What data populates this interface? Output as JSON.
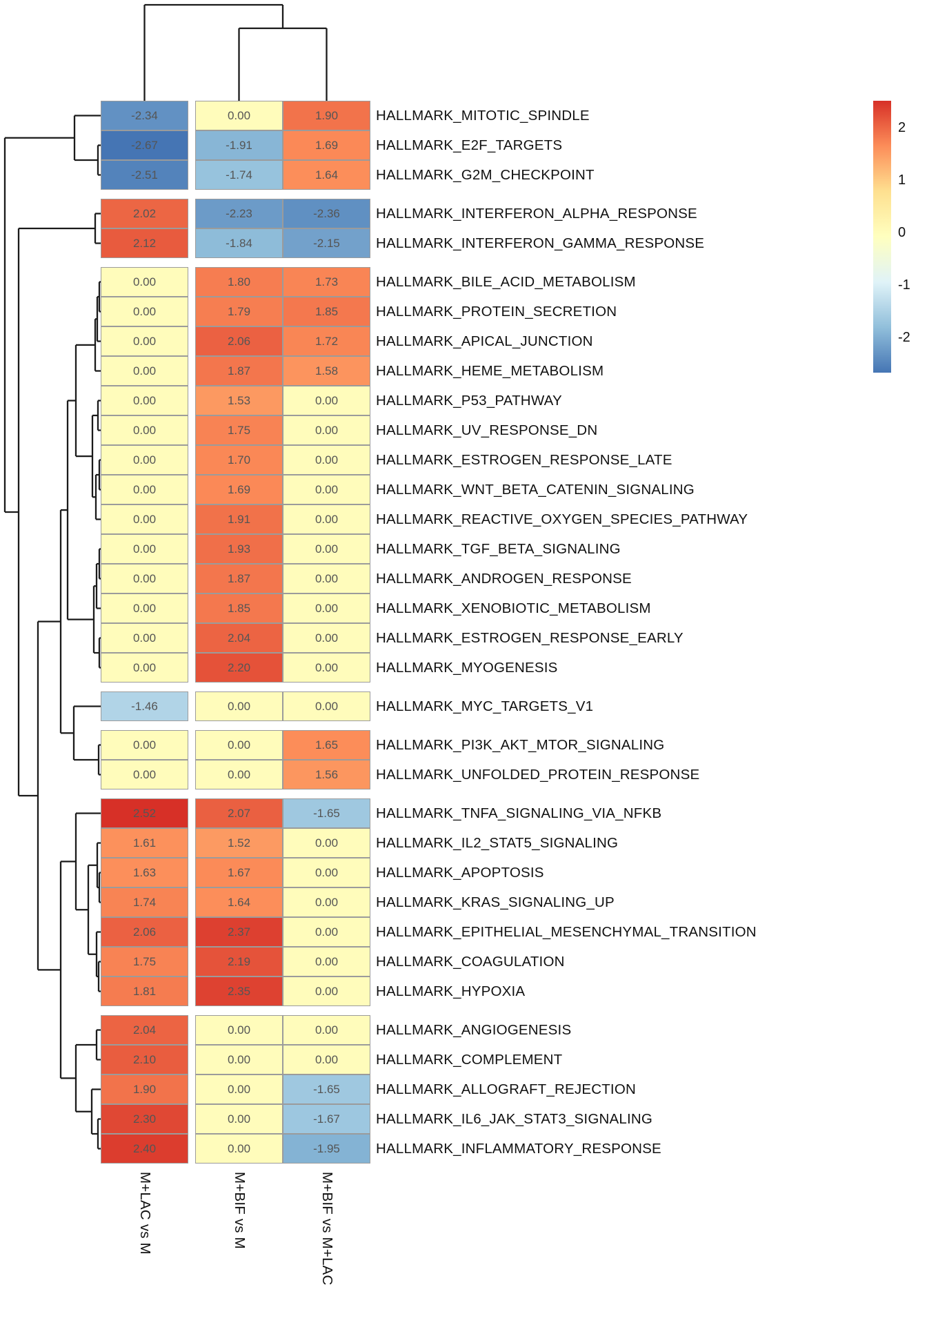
{
  "chart_data": {
    "type": "heatmap",
    "columns": [
      "M+LAC vs M",
      "M+BIF vs M",
      "M+BIF vs M+LAC"
    ],
    "rows": [
      {
        "label": "HALLMARK_MITOTIC_SPINDLE",
        "values": [
          -2.34,
          0.0,
          1.9
        ]
      },
      {
        "label": "HALLMARK_E2F_TARGETS",
        "values": [
          -2.67,
          -1.91,
          1.69
        ]
      },
      {
        "label": "HALLMARK_G2M_CHECKPOINT",
        "values": [
          -2.51,
          -1.74,
          1.64
        ]
      },
      {
        "label": "HALLMARK_INTERFERON_ALPHA_RESPONSE",
        "values": [
          2.02,
          -2.23,
          -2.36
        ]
      },
      {
        "label": "HALLMARK_INTERFERON_GAMMA_RESPONSE",
        "values": [
          2.12,
          -1.84,
          -2.15
        ]
      },
      {
        "label": "HALLMARK_BILE_ACID_METABOLISM",
        "values": [
          0.0,
          1.8,
          1.73
        ]
      },
      {
        "label": "HALLMARK_PROTEIN_SECRETION",
        "values": [
          0.0,
          1.79,
          1.85
        ]
      },
      {
        "label": "HALLMARK_APICAL_JUNCTION",
        "values": [
          0.0,
          2.06,
          1.72
        ]
      },
      {
        "label": "HALLMARK_HEME_METABOLISM",
        "values": [
          0.0,
          1.87,
          1.58
        ]
      },
      {
        "label": "HALLMARK_P53_PATHWAY",
        "values": [
          0.0,
          1.53,
          0.0
        ]
      },
      {
        "label": "HALLMARK_UV_RESPONSE_DN",
        "values": [
          0.0,
          1.75,
          0.0
        ]
      },
      {
        "label": "HALLMARK_ESTROGEN_RESPONSE_LATE",
        "values": [
          0.0,
          1.7,
          0.0
        ]
      },
      {
        "label": "HALLMARK_WNT_BETA_CATENIN_SIGNALING",
        "values": [
          0.0,
          1.69,
          0.0
        ]
      },
      {
        "label": "HALLMARK_REACTIVE_OXYGEN_SPECIES_PATHWAY",
        "values": [
          0.0,
          1.91,
          0.0
        ]
      },
      {
        "label": "HALLMARK_TGF_BETA_SIGNALING",
        "values": [
          0.0,
          1.93,
          0.0
        ]
      },
      {
        "label": "HALLMARK_ANDROGEN_RESPONSE",
        "values": [
          0.0,
          1.87,
          0.0
        ]
      },
      {
        "label": "HALLMARK_XENOBIOTIC_METABOLISM",
        "values": [
          0.0,
          1.85,
          0.0
        ]
      },
      {
        "label": "HALLMARK_ESTROGEN_RESPONSE_EARLY",
        "values": [
          0.0,
          2.04,
          0.0
        ]
      },
      {
        "label": "HALLMARK_MYOGENESIS",
        "values": [
          0.0,
          2.2,
          0.0
        ]
      },
      {
        "label": "HALLMARK_MYC_TARGETS_V1",
        "values": [
          -1.46,
          0.0,
          0.0
        ]
      },
      {
        "label": "HALLMARK_PI3K_AKT_MTOR_SIGNALING",
        "values": [
          0.0,
          0.0,
          1.65
        ]
      },
      {
        "label": "HALLMARK_UNFOLDED_PROTEIN_RESPONSE",
        "values": [
          0.0,
          0.0,
          1.56
        ]
      },
      {
        "label": "HALLMARK_TNFA_SIGNALING_VIA_NFKB",
        "values": [
          2.52,
          2.07,
          -1.65
        ]
      },
      {
        "label": "HALLMARK_IL2_STAT5_SIGNALING",
        "values": [
          1.61,
          1.52,
          0.0
        ]
      },
      {
        "label": "HALLMARK_APOPTOSIS",
        "values": [
          1.63,
          1.67,
          0.0
        ]
      },
      {
        "label": "HALLMARK_KRAS_SIGNALING_UP",
        "values": [
          1.74,
          1.64,
          0.0
        ]
      },
      {
        "label": "HALLMARK_EPITHELIAL_MESENCHYMAL_TRANSITION",
        "values": [
          2.06,
          2.37,
          0.0
        ]
      },
      {
        "label": "HALLMARK_COAGULATION",
        "values": [
          1.75,
          2.19,
          0.0
        ]
      },
      {
        "label": "HALLMARK_HYPOXIA",
        "values": [
          1.81,
          2.35,
          0.0
        ]
      },
      {
        "label": "HALLMARK_ANGIOGENESIS",
        "values": [
          2.04,
          0.0,
          0.0
        ]
      },
      {
        "label": "HALLMARK_COMPLEMENT",
        "values": [
          2.1,
          0.0,
          0.0
        ]
      },
      {
        "label": "HALLMARK_ALLOGRAFT_REJECTION",
        "values": [
          1.9,
          0.0,
          -1.65
        ]
      },
      {
        "label": "HALLMARK_IL6_JAK_STAT3_SIGNALING",
        "values": [
          2.3,
          0.0,
          -1.67
        ]
      },
      {
        "label": "HALLMARK_INFLAMMATORY_RESPONSE",
        "values": [
          2.4,
          0.0,
          -1.95
        ]
      }
    ],
    "row_groups": [
      3,
      2,
      14,
      1,
      2,
      7,
      5
    ],
    "column_groups": [
      1,
      2
    ],
    "colorbar": {
      "ticks": [
        2,
        1,
        0,
        -1,
        -2
      ],
      "domain": [
        -2.67,
        2.52
      ],
      "palette": [
        "#4575b4",
        "#91bfdb",
        "#e0f3f8",
        "#ffffbf",
        "#fee090",
        "#fc8d59",
        "#d73027"
      ]
    },
    "grid": true,
    "legend_position": "right"
  }
}
